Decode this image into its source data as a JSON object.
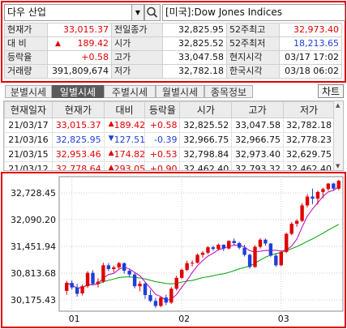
{
  "search": {
    "name": "다우 산업",
    "description": "[미국]:Dow Jones Indices",
    "icon": "magnifier-icon"
  },
  "quote": {
    "rows": [
      [
        {
          "l": "현재가",
          "v": "33,015.37",
          "c": "up"
        },
        {
          "l": "전일종가",
          "v": "32,825.95",
          "c": ""
        },
        {
          "l": "52주최고",
          "v": "32,973.40",
          "c": "up"
        }
      ],
      [
        {
          "l": "대  비",
          "v": "189.42",
          "c": "up",
          "arrow": "▲"
        },
        {
          "l": "시가",
          "v": "32,825.52",
          "c": ""
        },
        {
          "l": "52주최저",
          "v": "18,213.65",
          "c": "dn"
        }
      ],
      [
        {
          "l": "등락율",
          "v": "+0.58",
          "c": "up"
        },
        {
          "l": "고가",
          "v": "33,047.58",
          "c": ""
        },
        {
          "l": "현지시각",
          "v": "03/17 17:02",
          "c": ""
        }
      ],
      [
        {
          "l": "거래량",
          "v": "391,809,674",
          "c": ""
        },
        {
          "l": "저가",
          "v": "32,782.18",
          "c": ""
        },
        {
          "l": "한국시각",
          "v": "03/18 06:02",
          "c": ""
        }
      ]
    ]
  },
  "tabs": [
    "분별시세",
    "일별시세",
    "주별시세",
    "월별시세",
    "종목정보"
  ],
  "active_tab": 1,
  "chart_button": "차트",
  "daily": {
    "headers": [
      "현재일자",
      "현재가",
      "대비",
      "등락율",
      "시가",
      "고가",
      "저가"
    ],
    "rows": [
      {
        "date": "21/03/17",
        "close": "33,015.37",
        "arrow": "▲",
        "chg": "189.42",
        "pct": "+0.58",
        "open": "32,825.52",
        "high": "33,047.58",
        "low": "32,782.18",
        "c": "up"
      },
      {
        "date": "21/03/16",
        "close": "32,825.95",
        "arrow": "▼",
        "chg": "127.51",
        "pct": "-0.39",
        "open": "32,966.75",
        "high": "32,966.75",
        "low": "32,778.23",
        "c": "dn"
      },
      {
        "date": "21/03/15",
        "close": "32,953.46",
        "arrow": "▲",
        "chg": "174.82",
        "pct": "+0.53",
        "open": "32,798.84",
        "high": "32,973.40",
        "low": "32,629.75",
        "c": "up"
      },
      {
        "date": "21/03/12",
        "close": "32,778.64",
        "arrow": "▲",
        "chg": "293.05",
        "pct": "+0.90",
        "open": "32,462.40",
        "high": "32,793.32",
        "low": "32,462.40",
        "c": "up"
      }
    ]
  },
  "chart_data": {
    "type": "candlestick",
    "y_ticks": [
      32728.45,
      32090.2,
      31451.94,
      30813.68,
      30175.43
    ],
    "y_tick_labels": [
      "32,728.45",
      "32,090.20",
      "31,451.94",
      "30,813.68",
      "30,175.43"
    ],
    "x_labels": [
      "01",
      "02",
      "03"
    ],
    "colors": {
      "up": "#e00000",
      "down": "#1f3fd6",
      "ma_short": "#c000c0",
      "ma_long": "#00a000"
    },
    "candles": [
      [
        30390,
        30630,
        30300,
        30580
      ],
      [
        30580,
        30640,
        30420,
        30470
      ],
      [
        30470,
        30560,
        30250,
        30320
      ],
      [
        30330,
        30540,
        30280,
        30500
      ],
      [
        30500,
        30860,
        30460,
        30820
      ],
      [
        30820,
        30880,
        30520,
        30560
      ],
      [
        30560,
        30690,
        30470,
        30610
      ],
      [
        30610,
        31060,
        30580,
        31000
      ],
      [
        31000,
        31050,
        30860,
        30910
      ],
      [
        30910,
        30990,
        30830,
        30950
      ],
      [
        30950,
        31080,
        30900,
        31050
      ],
      [
        31050,
        31070,
        30800,
        30870
      ],
      [
        30870,
        30920,
        30720,
        30780
      ],
      [
        30780,
        30830,
        30450,
        30500
      ],
      [
        30500,
        30620,
        30380,
        30560
      ],
      [
        30560,
        30600,
        30200,
        30290
      ],
      [
        30290,
        30410,
        30120,
        30150
      ],
      [
        30150,
        30220,
        29980,
        30030
      ],
      [
        30030,
        30260,
        30000,
        30230
      ],
      [
        30230,
        30300,
        30050,
        30110
      ],
      [
        30110,
        30480,
        30080,
        30440
      ],
      [
        30440,
        30750,
        30400,
        30700
      ],
      [
        30700,
        30920,
        30680,
        30890
      ],
      [
        30890,
        31110,
        30860,
        31050
      ],
      [
        31050,
        31120,
        30970,
        31060
      ],
      [
        31060,
        31280,
        31040,
        31250
      ],
      [
        31250,
        31340,
        31180,
        31300
      ],
      [
        31300,
        31460,
        31260,
        31430
      ],
      [
        31430,
        31470,
        31350,
        31390
      ],
      [
        31390,
        31520,
        31350,
        31490
      ],
      [
        31490,
        31500,
        31340,
        31400
      ],
      [
        31400,
        31600,
        31380,
        31580
      ],
      [
        31580,
        31640,
        31480,
        31530
      ],
      [
        31530,
        31560,
        31380,
        31420
      ],
      [
        31420,
        31490,
        31210,
        31250
      ],
      [
        31250,
        31280,
        30920,
        30960
      ],
      [
        30960,
        31480,
        30940,
        31440
      ],
      [
        31440,
        31650,
        31400,
        31610
      ],
      [
        31610,
        31640,
        31470,
        31520
      ],
      [
        31520,
        31530,
        31200,
        31230
      ],
      [
        31230,
        31290,
        30960,
        31000
      ],
      [
        31000,
        31350,
        30980,
        31320
      ],
      [
        31320,
        31780,
        31290,
        31750
      ],
      [
        31750,
        32030,
        31720,
        31990
      ],
      [
        31990,
        32100,
        31920,
        32060
      ],
      [
        32060,
        32480,
        32030,
        32430
      ],
      [
        32430,
        32700,
        32380,
        32640
      ],
      [
        32640,
        32830,
        32460,
        32590
      ],
      [
        32590,
        32780,
        32450,
        32750
      ],
      [
        32750,
        32850,
        32600,
        32820
      ],
      [
        32820,
        32960,
        32780,
        32950
      ],
      [
        32950,
        32970,
        32780,
        32830
      ],
      [
        32830,
        33040,
        32790,
        33015
      ]
    ],
    "x_label_index": [
      1,
      22,
      41
    ]
  }
}
